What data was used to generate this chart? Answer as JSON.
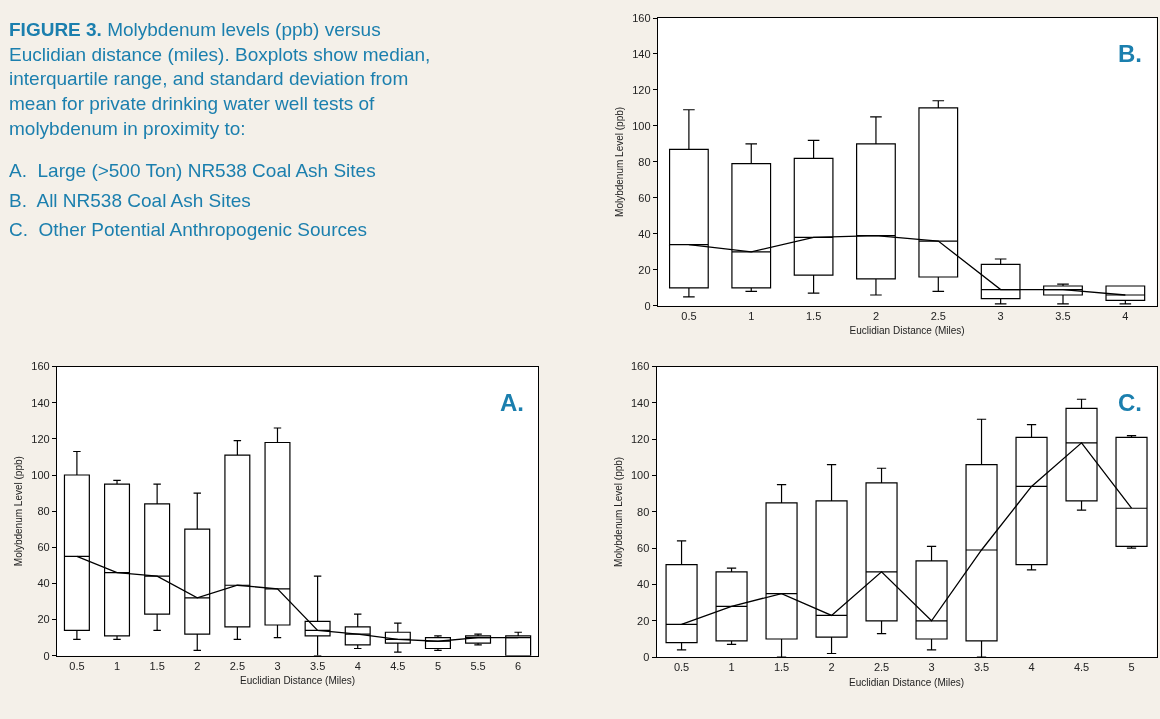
{
  "chart_data": [
    {
      "type": "other",
      "title": "FIGURE 3.",
      "subtitle": "Molybdenum levels (ppb) versus Euclidian distance (miles). Boxplots show median, interquartile range, and standard deviation from mean for private drinking water well tests of molybdenum in proximity to:",
      "annotations": [
        "A.  Large (>500 Ton) NR538 Coal Ash Sites",
        "B.  All NR538 Coal Ash Sites",
        "C.  Other Potential Anthropogenic Sources"
      ]
    },
    {
      "type": "box",
      "xlabel": "Euclidian Distance (Miles)",
      "ylabel": "Molybdenum Level (ppb)",
      "annotations": [
        "B."
      ],
      "categories": [
        "0.5",
        "1",
        "1.5",
        "2",
        "2.5",
        "3",
        "3.5",
        "4"
      ],
      "ylim": [
        0,
        160
      ],
      "yticks": [
        0,
        20,
        40,
        60,
        80,
        100,
        120,
        140,
        160
      ],
      "series": [
        {
          "type": "box",
          "color": "#000000",
          "boxes": [
            {
              "low": 5,
              "q1": 10,
              "median": 34,
              "q3": 87,
              "high": 109
            },
            {
              "low": 8,
              "q1": 10,
              "median": 30,
              "q3": 79,
              "high": 90
            },
            {
              "low": 7,
              "q1": 17,
              "median": 38,
              "q3": 82,
              "high": 92
            },
            {
              "low": 6,
              "q1": 15,
              "median": 39,
              "q3": 90,
              "high": 105
            },
            {
              "low": 8,
              "q1": 16,
              "median": 36,
              "q3": 110,
              "high": 114
            },
            {
              "low": 1,
              "q1": 4,
              "median": 9,
              "q3": 23,
              "high": 26
            },
            {
              "low": 1,
              "q1": 6,
              "median": 9,
              "q3": 11,
              "high": 12
            },
            {
              "low": 1,
              "q1": 3,
              "median": 6,
              "q3": 11,
              "high": 11
            }
          ]
        },
        {
          "type": "line",
          "color": "#000000",
          "values": [
            34,
            30,
            38,
            39,
            36,
            9,
            9,
            6
          ]
        }
      ]
    },
    {
      "type": "box",
      "xlabel": "Euclidian Distance (Miles)",
      "ylabel": "Molybdenum Level (ppb)",
      "annotations": [
        "A."
      ],
      "categories": [
        "0.5",
        "1",
        "1.5",
        "2",
        "2.5",
        "3",
        "3.5",
        "4",
        "4.5",
        "5",
        "5.5",
        "6"
      ],
      "ylim": [
        0,
        160
      ],
      "yticks": [
        0,
        20,
        40,
        60,
        80,
        100,
        120,
        140,
        160
      ],
      "series": [
        {
          "type": "box",
          "color": "#000000",
          "boxes": [
            {
              "low": 9,
              "q1": 14,
              "median": 55,
              "q3": 100,
              "high": 113
            },
            {
              "low": 9,
              "q1": 11,
              "median": 46,
              "q3": 95,
              "high": 97
            },
            {
              "low": 14,
              "q1": 23,
              "median": 44,
              "q3": 84,
              "high": 95
            },
            {
              "low": 3,
              "q1": 12,
              "median": 32,
              "q3": 70,
              "high": 90
            },
            {
              "low": 9,
              "q1": 16,
              "median": 39,
              "q3": 111,
              "high": 119
            },
            {
              "low": 10,
              "q1": 17,
              "median": 37,
              "q3": 118,
              "high": 126
            },
            {
              "low": 0,
              "q1": 11,
              "median": 14,
              "q3": 19,
              "high": 44
            },
            {
              "low": 4,
              "q1": 6,
              "median": 12,
              "q3": 16,
              "high": 23
            },
            {
              "low": 2,
              "q1": 7,
              "median": 9,
              "q3": 13,
              "high": 18
            },
            {
              "low": 3,
              "q1": 4,
              "median": 8,
              "q3": 10,
              "high": 11
            },
            {
              "low": 6,
              "q1": 7,
              "median": 10,
              "q3": 11,
              "high": 12
            },
            {
              "low": 0,
              "q1": 0,
              "median": 10,
              "q3": 11,
              "high": 13
            }
          ]
        },
        {
          "type": "line",
          "color": "#000000",
          "values": [
            55,
            46,
            44,
            32,
            39,
            37,
            14,
            12,
            9,
            8,
            10,
            10
          ]
        }
      ]
    },
    {
      "type": "box",
      "xlabel": "Euclidian Distance (Miles)",
      "ylabel": "Molybdenum Level (ppb)",
      "annotations": [
        "C."
      ],
      "categories": [
        "0.5",
        "1",
        "1.5",
        "2",
        "2.5",
        "3",
        "3.5",
        "4",
        "4.5",
        "5"
      ],
      "ylim": [
        0,
        160
      ],
      "yticks": [
        0,
        20,
        40,
        60,
        80,
        100,
        120,
        140,
        160
      ],
      "series": [
        {
          "type": "box",
          "color": "#000000",
          "boxes": [
            {
              "low": 4,
              "q1": 8,
              "median": 18,
              "q3": 51,
              "high": 64
            },
            {
              "low": 7,
              "q1": 9,
              "median": 28,
              "q3": 47,
              "high": 49
            },
            {
              "low": 0,
              "q1": 10,
              "median": 35,
              "q3": 85,
              "high": 95
            },
            {
              "low": 2,
              "q1": 11,
              "median": 23,
              "q3": 86,
              "high": 106
            },
            {
              "low": 13,
              "q1": 20,
              "median": 47,
              "q3": 96,
              "high": 104
            },
            {
              "low": 4,
              "q1": 10,
              "median": 20,
              "q3": 53,
              "high": 61
            },
            {
              "low": 0,
              "q1": 9,
              "median": 59,
              "q3": 106,
              "high": 131
            },
            {
              "low": 48,
              "q1": 51,
              "median": 94,
              "q3": 121,
              "high": 128
            },
            {
              "low": 81,
              "q1": 86,
              "median": 118,
              "q3": 137,
              "high": 142
            },
            {
              "low": 60,
              "q1": 61,
              "median": 82,
              "q3": 121,
              "high": 122
            }
          ]
        },
        {
          "type": "line",
          "color": "#000000",
          "values": [
            18,
            28,
            35,
            23,
            47,
            20,
            59,
            94,
            118,
            82
          ]
        }
      ]
    }
  ]
}
